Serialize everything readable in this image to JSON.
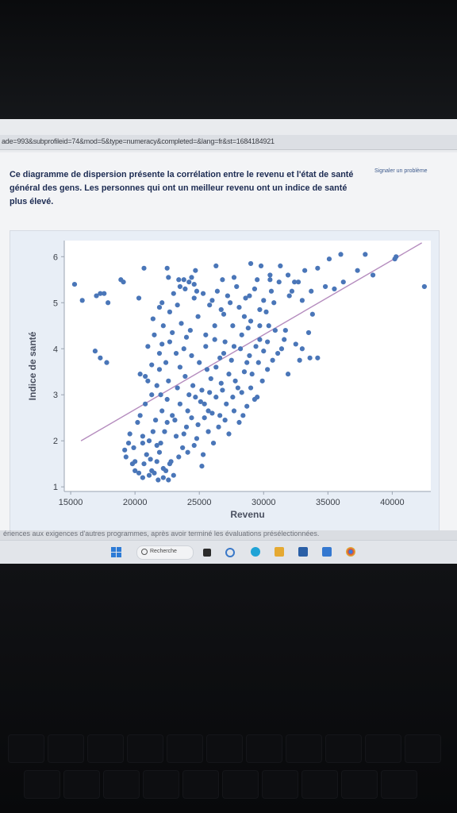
{
  "browser": {
    "url": "ade=993&subprofileid=74&mod=5&type=numeracy&completed=&lang=fr&st=1684184921"
  },
  "page": {
    "question": "Ce diagramme de dispersion présente la corrélation entre le revenu et l'état de santé général des gens. Les personnes qui ont un meilleur revenu ont un indice de santé plus élevé.",
    "report_link": "Signaler un problème",
    "footer_partial": "ériences aux exigences d'autres programmes, après avoir terminé les évaluations présélectionnées."
  },
  "taskbar": {
    "search_label": "Recherche",
    "icons": [
      "windows-start-icon",
      "search-icon",
      "file-explorer-icon",
      "cortana-icon",
      "edge-icon",
      "photos-icon",
      "store-icon",
      "mail-icon",
      "chrome-icon"
    ]
  },
  "colors": {
    "point": "#4a76b8",
    "trend": "#b58cbe",
    "panel": "#e8eef6"
  },
  "chart_data": {
    "type": "scatter",
    "title": "",
    "xlabel": "Revenu",
    "ylabel": "Indice de santé",
    "xlim": [
      14500,
      43000
    ],
    "ylim": [
      0.9,
      6.35
    ],
    "xticks": [
      15000,
      20000,
      25000,
      30000,
      35000,
      40000
    ],
    "yticks": [
      1,
      2,
      3,
      4,
      5,
      6
    ],
    "grid": false,
    "trendline": {
      "x": [
        15800,
        42300
      ],
      "y": [
        2.0,
        6.3
      ]
    },
    "points": [
      [
        15300,
        5.4
      ],
      [
        15900,
        5.05
      ],
      [
        17000,
        5.15
      ],
      [
        17300,
        5.2
      ],
      [
        17600,
        5.2
      ],
      [
        17900,
        5.0
      ],
      [
        16900,
        3.95
      ],
      [
        17300,
        3.8
      ],
      [
        17800,
        3.7
      ],
      [
        18900,
        5.5
      ],
      [
        19100,
        5.45
      ],
      [
        20300,
        5.1
      ],
      [
        20700,
        5.75
      ],
      [
        22500,
        5.75
      ],
      [
        22600,
        5.55
      ],
      [
        23400,
        5.5
      ],
      [
        23800,
        5.5
      ],
      [
        24200,
        5.45
      ],
      [
        24400,
        5.55
      ],
      [
        24700,
        5.7
      ],
      [
        26300,
        5.8
      ],
      [
        29000,
        5.85
      ],
      [
        29800,
        5.8
      ],
      [
        30500,
        5.6
      ],
      [
        31300,
        5.8
      ],
      [
        32400,
        5.45
      ],
      [
        33200,
        5.7
      ],
      [
        34200,
        5.75
      ],
      [
        35100,
        5.95
      ],
      [
        36000,
        6.05
      ],
      [
        37300,
        5.7
      ],
      [
        37900,
        6.05
      ],
      [
        38500,
        5.6
      ],
      [
        40200,
        5.95
      ],
      [
        40300,
        6.0
      ],
      [
        42500,
        5.35
      ],
      [
        34800,
        5.35
      ],
      [
        35500,
        5.3
      ],
      [
        36200,
        5.45
      ],
      [
        33800,
        4.75
      ],
      [
        32000,
        5.15
      ],
      [
        30900,
        4.4
      ],
      [
        31700,
        4.4
      ],
      [
        33000,
        4.0
      ],
      [
        33600,
        3.8
      ],
      [
        34200,
        3.8
      ],
      [
        28500,
        4.7
      ],
      [
        29700,
        4.85
      ],
      [
        30400,
        4.5
      ],
      [
        31100,
        3.9
      ],
      [
        30800,
        5.0
      ],
      [
        31600,
        4.2
      ],
      [
        32500,
        4.1
      ],
      [
        31900,
        3.45
      ],
      [
        20400,
        3.45
      ],
      [
        20800,
        3.4
      ],
      [
        21700,
        3.2
      ],
      [
        22000,
        3.0
      ],
      [
        19300,
        1.65
      ],
      [
        19800,
        1.5
      ],
      [
        20300,
        1.3
      ],
      [
        20700,
        1.5
      ],
      [
        20600,
        1.2
      ],
      [
        21100,
        1.25
      ],
      [
        21500,
        1.3
      ],
      [
        21800,
        1.15
      ],
      [
        22200,
        1.2
      ],
      [
        22600,
        1.15
      ],
      [
        23000,
        1.25
      ],
      [
        22700,
        1.5
      ],
      [
        21200,
        1.6
      ],
      [
        21900,
        1.75
      ],
      [
        22800,
        1.55
      ],
      [
        23700,
        1.85
      ],
      [
        24600,
        1.9
      ],
      [
        25300,
        1.7
      ],
      [
        26100,
        1.95
      ],
      [
        25700,
        2.2
      ],
      [
        26500,
        2.3
      ],
      [
        27300,
        2.15
      ],
      [
        28100,
        2.4
      ],
      [
        28700,
        2.75
      ],
      [
        29300,
        2.9
      ],
      [
        28300,
        3.05
      ],
      [
        27600,
        2.95
      ],
      [
        26800,
        3.1
      ],
      [
        25900,
        3.35
      ],
      [
        25200,
        3.1
      ],
      [
        24500,
        3.2
      ],
      [
        23900,
        3.4
      ],
      [
        23300,
        3.15
      ],
      [
        22600,
        3.3
      ],
      [
        21900,
        3.55
      ],
      [
        21300,
        3.0
      ],
      [
        20800,
        2.8
      ],
      [
        20200,
        2.4
      ],
      [
        19600,
        2.15
      ],
      [
        19900,
        1.85
      ],
      [
        20600,
        2.1
      ],
      [
        21100,
        2.0
      ],
      [
        21600,
        2.45
      ],
      [
        22100,
        2.65
      ],
      [
        22500,
        2.9
      ],
      [
        22900,
        2.55
      ],
      [
        23500,
        2.8
      ],
      [
        24100,
        2.65
      ],
      [
        24700,
        2.95
      ],
      [
        25400,
        2.8
      ],
      [
        26000,
        2.6
      ],
      [
        26600,
        2.55
      ],
      [
        27100,
        2.8
      ],
      [
        27800,
        3.3
      ],
      [
        28500,
        3.5
      ],
      [
        29100,
        3.45
      ],
      [
        29600,
        3.7
      ],
      [
        28900,
        3.85
      ],
      [
        28200,
        4.0
      ],
      [
        27500,
        3.75
      ],
      [
        26900,
        3.9
      ],
      [
        26300,
        3.6
      ],
      [
        25600,
        3.55
      ],
      [
        25000,
        3.7
      ],
      [
        24400,
        3.85
      ],
      [
        23800,
        4.0
      ],
      [
        23200,
        3.9
      ],
      [
        22700,
        4.15
      ],
      [
        22100,
        4.1
      ],
      [
        21500,
        4.3
      ],
      [
        21000,
        4.05
      ],
      [
        21400,
        4.65
      ],
      [
        22200,
        4.5
      ],
      [
        22900,
        4.35
      ],
      [
        23600,
        4.55
      ],
      [
        24300,
        4.4
      ],
      [
        24900,
        4.7
      ],
      [
        25500,
        4.3
      ],
      [
        26200,
        4.5
      ],
      [
        26900,
        4.75
      ],
      [
        27600,
        4.5
      ],
      [
        28300,
        4.3
      ],
      [
        29000,
        4.6
      ],
      [
        29700,
        4.2
      ],
      [
        30300,
        4.15
      ],
      [
        30000,
        3.95
      ],
      [
        29400,
        4.05
      ],
      [
        28800,
        4.45
      ],
      [
        28100,
        4.9
      ],
      [
        27400,
        5.0
      ],
      [
        26700,
        4.85
      ],
      [
        26000,
        5.05
      ],
      [
        25300,
        5.2
      ],
      [
        24600,
        5.1
      ],
      [
        23900,
        5.3
      ],
      [
        23300,
        4.95
      ],
      [
        22700,
        4.8
      ],
      [
        22100,
        5.0
      ],
      [
        23500,
        5.35
      ],
      [
        24800,
        5.25
      ],
      [
        25800,
        4.95
      ],
      [
        26400,
        5.25
      ],
      [
        27200,
        5.15
      ],
      [
        27900,
        5.35
      ],
      [
        28600,
        5.1
      ],
      [
        29300,
        5.3
      ],
      [
        30000,
        5.05
      ],
      [
        30600,
        5.25
      ],
      [
        31200,
        5.45
      ],
      [
        32200,
        5.25
      ],
      [
        33000,
        5.05
      ],
      [
        32700,
        5.45
      ],
      [
        25200,
        1.45
      ],
      [
        24400,
        2.5
      ],
      [
        23200,
        2.1
      ],
      [
        22300,
        2.2
      ],
      [
        21700,
        1.9
      ],
      [
        20900,
        1.7
      ],
      [
        20000,
        1.55
      ],
      [
        19500,
        1.95
      ],
      [
        24000,
        2.3
      ],
      [
        24900,
        2.35
      ],
      [
        25700,
        2.65
      ],
      [
        26300,
        2.95
      ],
      [
        27000,
        2.45
      ],
      [
        27700,
        2.65
      ],
      [
        28400,
        2.55
      ],
      [
        29000,
        3.15
      ],
      [
        29500,
        2.95
      ],
      [
        29900,
        3.3
      ],
      [
        30300,
        3.55
      ],
      [
        30700,
        3.75
      ],
      [
        23500,
        3.6
      ],
      [
        24200,
        3.0
      ],
      [
        22400,
        3.7
      ],
      [
        21900,
        3.9
      ],
      [
        21300,
        3.65
      ],
      [
        25500,
        4.05
      ],
      [
        26200,
        4.2
      ],
      [
        27000,
        4.15
      ],
      [
        27700,
        4.05
      ],
      [
        22500,
        2.4
      ],
      [
        23100,
        2.45
      ],
      [
        25100,
        2.85
      ],
      [
        26700,
        3.25
      ],
      [
        27300,
        3.45
      ],
      [
        28000,
        3.15
      ],
      [
        22200,
        1.4
      ],
      [
        23400,
        1.65
      ],
      [
        24100,
        1.75
      ],
      [
        21400,
        2.2
      ],
      [
        20400,
        2.55
      ],
      [
        21000,
        3.3
      ],
      [
        24000,
        4.25
      ],
      [
        25800,
        3.05
      ],
      [
        26600,
        3.8
      ],
      [
        28700,
        3.7
      ],
      [
        29700,
        4.5
      ],
      [
        31400,
        4.0
      ],
      [
        32800,
        3.75
      ],
      [
        33500,
        4.35
      ],
      [
        30200,
        4.8
      ],
      [
        24600,
        5.4
      ],
      [
        23000,
        5.2
      ],
      [
        21900,
        4.9
      ],
      [
        26800,
        5.5
      ],
      [
        27700,
        5.55
      ],
      [
        28900,
        5.15
      ],
      [
        29500,
        5.5
      ],
      [
        31900,
        5.6
      ],
      [
        30500,
        5.5
      ],
      [
        33700,
        5.25
      ],
      [
        19200,
        1.8
      ],
      [
        20000,
        1.35
      ],
      [
        21300,
        1.35
      ],
      [
        21700,
        1.55
      ],
      [
        22400,
        1.35
      ],
      [
        22000,
        1.95
      ],
      [
        20600,
        1.95
      ],
      [
        23800,
        2.15
      ],
      [
        24800,
        2.05
      ],
      [
        25400,
        2.5
      ]
    ]
  }
}
